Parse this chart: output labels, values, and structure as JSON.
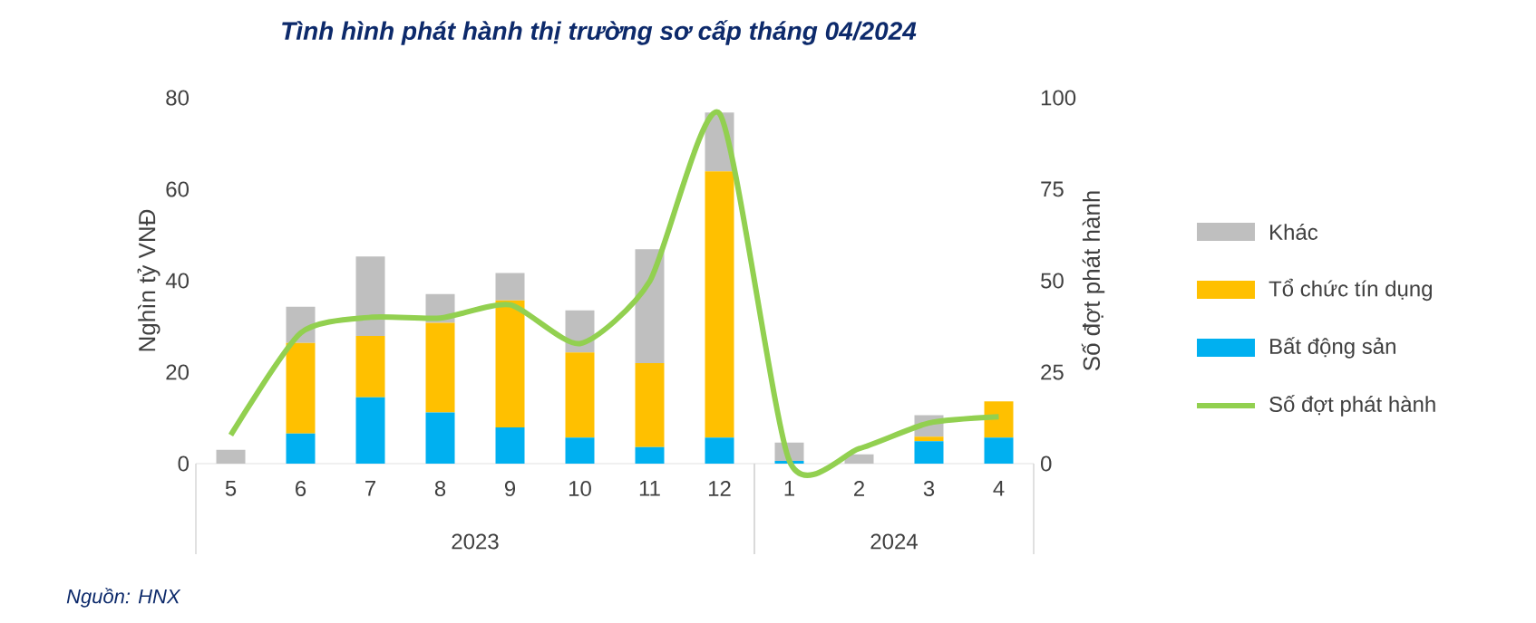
{
  "chart_data": {
    "type": "bar",
    "stacked": true,
    "title": "Tình hình phát hành thị trường sơ cấp tháng 04/2024",
    "ylabel": "Nghìn tỷ VNĐ",
    "y2label": "Số đợt phát hành",
    "categories": [
      "5",
      "6",
      "7",
      "8",
      "9",
      "10",
      "11",
      "12",
      "1",
      "2",
      "3",
      "4"
    ],
    "series": [
      {
        "name": "Bất động sản",
        "color": "#00b0f0",
        "values": [
          0,
          6.6,
          14.5,
          11.2,
          7.9,
          5.7,
          3.6,
          5.7,
          0.6,
          0,
          4.9,
          5.7
        ]
      },
      {
        "name": "Tổ chức tín dụng",
        "color": "#ffc000",
        "values": [
          0,
          19.8,
          13.4,
          19.6,
          27.8,
          18.6,
          18.4,
          58.2,
          0,
          0,
          1.0,
          7.9
        ]
      },
      {
        "name": "Khác",
        "color": "#bfbfbf",
        "values": [
          3.0,
          7.9,
          17.4,
          6.3,
          6.0,
          9.2,
          24.9,
          12.9,
          4.0,
          2.0,
          4.7,
          0
        ]
      },
      {
        "name": "Số đợt phát hành",
        "type": "line",
        "axis": "y2",
        "color": "#92d050",
        "values": [
          7.8,
          35.7,
          40,
          39.8,
          43.4,
          32.8,
          49.8,
          95.7,
          0.8,
          4.1,
          11.1,
          12.8
        ]
      }
    ],
    "ylim": [
      0,
      80
    ],
    "yticks": [
      0,
      20,
      40,
      60,
      80
    ],
    "y2lim": [
      0,
      100
    ],
    "y2ticks": [
      0,
      25,
      50,
      75,
      100
    ],
    "legend": "right",
    "grid": false,
    "marker": "none",
    "line_style": "solid",
    "annotations": [
      "2023",
      "2024",
      "Nguồn: HNX"
    ]
  }
}
